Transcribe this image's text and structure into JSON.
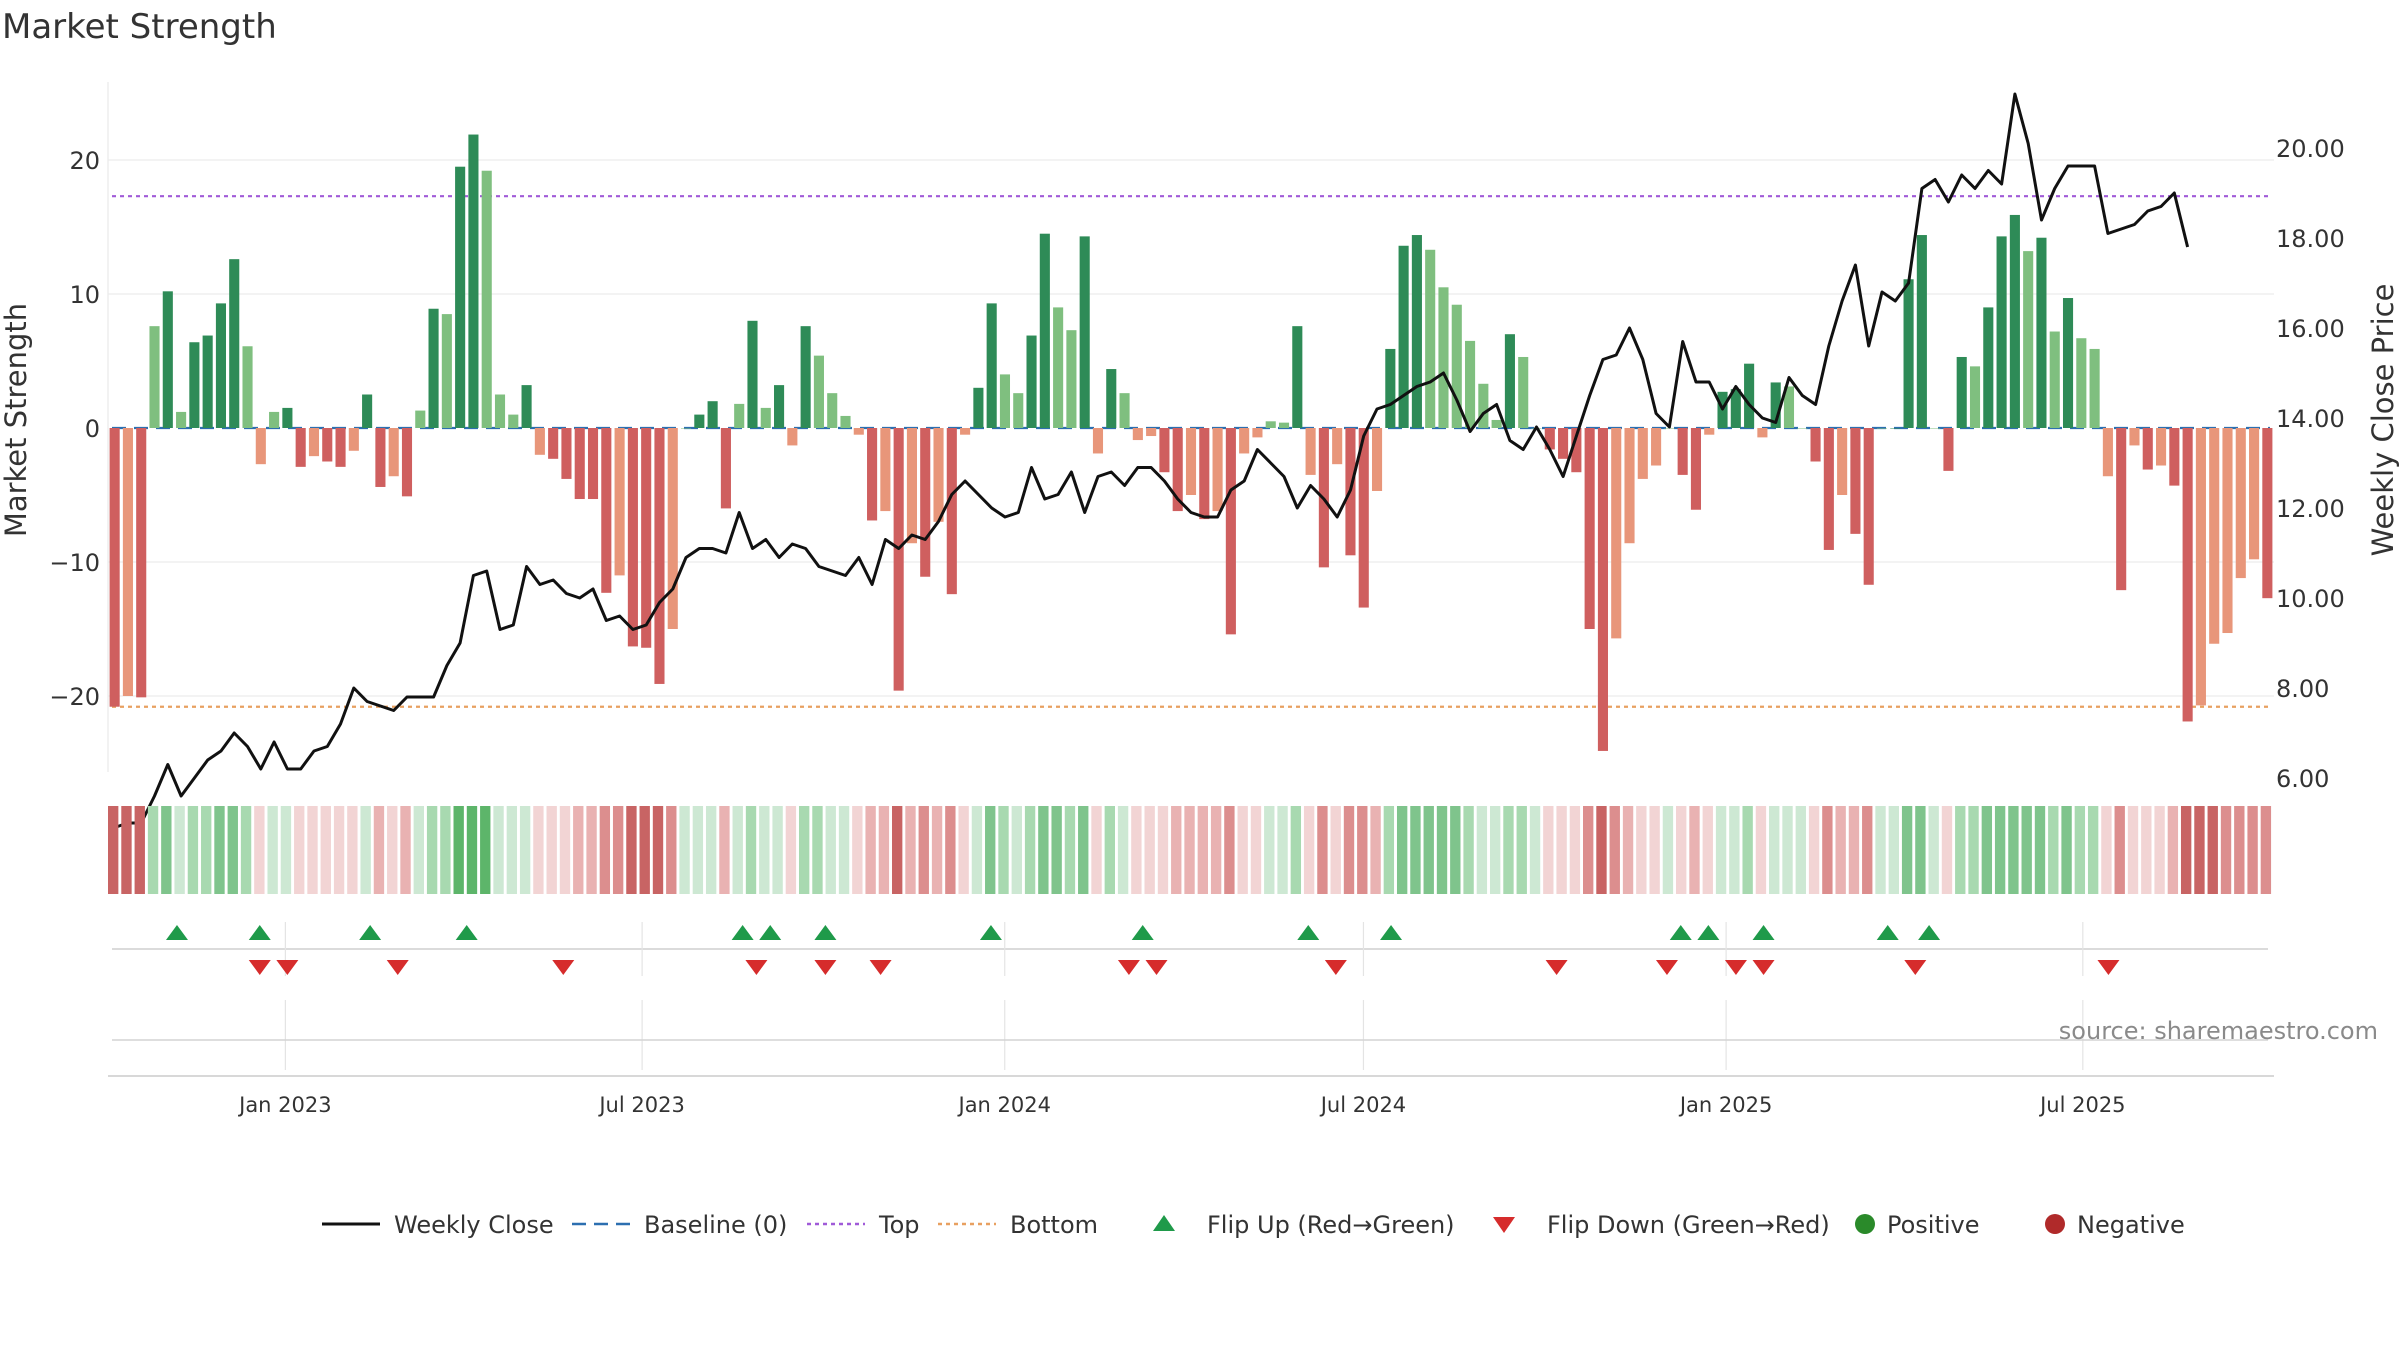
{
  "chart_data": {
    "type": "bar+line",
    "title": "Market Strength",
    "ylabel_left": "Market Strength",
    "ylabel_right": "Weekly Close Price",
    "source": "source: sharemaestro.com",
    "yleft_range": [
      -26,
      26
    ],
    "yleft_ticks": [
      20,
      10,
      0,
      -10,
      -20
    ],
    "yleft_tick_labels": [
      "20",
      "10",
      "0",
      "−10",
      "−20"
    ],
    "yright_range": [
      4.2,
      21.6
    ],
    "yright_ticks": [
      20,
      18,
      16,
      14,
      12,
      10,
      8,
      6
    ],
    "yright_tick_labels": [
      "20.00",
      "18.00",
      "16.00",
      "14.00",
      "12.00",
      "10.00",
      "8.00",
      "6.00"
    ],
    "top_line": 17.3,
    "bottom_line": -20.8,
    "baseline": 0,
    "x_start": "2022-10-03",
    "x_end": "2025-10-06",
    "x_ticks": [
      {
        "date": "2023-01-01",
        "label": "Jan 2023"
      },
      {
        "date": "2023-07-01",
        "label": "Jul 2023"
      },
      {
        "date": "2024-01-01",
        "label": "Jan 2024"
      },
      {
        "date": "2024-07-01",
        "label": "Jul 2024"
      },
      {
        "date": "2025-01-01",
        "label": "Jan 2025"
      },
      {
        "date": "2025-07-01",
        "label": "Jul 2025"
      }
    ],
    "strength": [
      -20.8,
      -20,
      -20.1,
      7.6,
      10.2,
      1.2,
      6.4,
      6.9,
      9.3,
      12.6,
      6.1,
      -2.7,
      1.2,
      1.5,
      -2.9,
      -2.1,
      -2.5,
      -2.9,
      -1.7,
      2.5,
      -4.4,
      -3.6,
      -5.1,
      1.3,
      8.9,
      8.5,
      19.5,
      21.9,
      19.2,
      2.5,
      1,
      3.2,
      -2,
      -2.3,
      -3.8,
      -5.3,
      -5.3,
      -12.3,
      -11,
      -16.3,
      -16.4,
      -19.1,
      -15,
      0,
      1,
      2,
      -6,
      1.8,
      8,
      1.5,
      3.2,
      -1.3,
      7.6,
      5.4,
      2.6,
      0.9,
      -0.5,
      -6.9,
      -6.2,
      -19.6,
      -8.6,
      -11.1,
      -7,
      -12.4,
      -0.5,
      3,
      9.3,
      4,
      2.6,
      6.9,
      14.5,
      9,
      7.3,
      14.3,
      -1.9,
      4.4,
      2.6,
      -0.9,
      -0.6,
      -3.3,
      -6.2,
      -5,
      -6.8,
      -6.2,
      -15.4,
      -1.9,
      -0.7,
      0.5,
      0.4,
      7.6,
      -3.5,
      -10.4,
      -2.7,
      -9.5,
      -13.4,
      -4.7,
      5.9,
      13.6,
      14.4,
      13.3,
      10.5,
      9.2,
      6.5,
      3.3,
      0.6,
      7,
      5.3,
      0,
      -1.6,
      -2.3,
      -3.3,
      -15,
      -24.1,
      -15.7,
      -8.6,
      -3.8,
      -2.8,
      0,
      -3.5,
      -6.1,
      -0.5,
      2.7,
      2.9,
      4.8,
      -0.7,
      3.4,
      3.1,
      0,
      -2.5,
      -9.1,
      -5,
      -7.9,
      -11.7,
      0,
      0,
      11.1,
      14.4,
      0,
      -3.2,
      5.3,
      4.6,
      9,
      14.3,
      15.9,
      13.2,
      14.2,
      7.2,
      9.7,
      6.7,
      5.9,
      -3.6,
      -12.1,
      -1.3,
      -3.1,
      -2.8,
      -4.3,
      -21.9,
      -20.7,
      -16.1,
      -15.3,
      -11.2,
      -9.8,
      -12.7
    ],
    "weekly_close": [
      4.9,
      5,
      5,
      5.6,
      6.3,
      5.6,
      6,
      6.4,
      6.6,
      7,
      6.7,
      6.2,
      6.8,
      6.2,
      6.2,
      6.6,
      6.7,
      7.2,
      8,
      7.7,
      7.6,
      7.5,
      7.8,
      7.8,
      7.8,
      8.5,
      9,
      10.5,
      10.6,
      9.3,
      9.4,
      10.7,
      10.3,
      10.4,
      10.1,
      10,
      10.2,
      9.5,
      9.6,
      9.3,
      9.4,
      9.9,
      10.2,
      10.9,
      11.1,
      11.1,
      11,
      11.9,
      11.1,
      11.3,
      10.9,
      11.2,
      11.1,
      10.7,
      10.6,
      10.5,
      10.9,
      10.3,
      11.3,
      11.1,
      11.4,
      11.3,
      11.7,
      12.3,
      12.6,
      12.3,
      12,
      11.8,
      11.9,
      12.9,
      12.2,
      12.3,
      12.8,
      11.9,
      12.7,
      12.8,
      12.5,
      12.9,
      12.9,
      12.6,
      12.2,
      11.9,
      11.8,
      11.8,
      12.4,
      12.6,
      13.3,
      13,
      12.7,
      12,
      12.5,
      12.2,
      11.8,
      12.4,
      13.6,
      14.2,
      14.3,
      14.5,
      14.7,
      14.8,
      15,
      14.4,
      13.7,
      14.1,
      14.3,
      13.5,
      13.3,
      13.8,
      13.3,
      12.7,
      13.6,
      14.5,
      15.3,
      15.4,
      16,
      15.3,
      14.1,
      13.8,
      15.7,
      14.8,
      14.8,
      14.2,
      14.7,
      14.3,
      14,
      13.9,
      14.9,
      14.5,
      14.3,
      15.6,
      16.6,
      17.4,
      15.6,
      16.8,
      16.6,
      17,
      19.1,
      19.3,
      18.8,
      19.4,
      19.1,
      19.5,
      19.2,
      21.2,
      20.1,
      18.4,
      19.1,
      19.6,
      19.6,
      19.6,
      18.1,
      18.2,
      18.3,
      18.6,
      18.7,
      19,
      17.8
    ],
    "flip_up_dates": [
      "2022-11-07",
      "2022-12-19",
      "2023-02-13",
      "2023-04-03",
      "2023-08-21",
      "2023-09-04",
      "2023-10-02",
      "2023-12-25",
      "2024-03-11",
      "2024-06-03",
      "2024-07-15",
      "2024-12-09",
      "2024-12-23",
      "2025-01-20",
      "2025-03-24",
      "2025-04-14"
    ],
    "flip_down_dates": [
      "2022-12-19",
      "2023-01-02",
      "2023-02-27",
      "2023-05-22",
      "2023-08-28",
      "2023-10-02",
      "2023-10-30",
      "2024-03-04",
      "2024-03-18",
      "2024-06-17",
      "2024-10-07",
      "2024-12-02",
      "2025-01-06",
      "2025-01-20",
      "2025-04-07",
      "2025-07-14"
    ],
    "series": [
      {
        "name": "Weekly Close",
        "color": "#111111",
        "style": "solid"
      },
      {
        "name": "Baseline (0)",
        "color": "#2c6fb0",
        "style": "dashed"
      },
      {
        "name": "Top",
        "color": "#a05ad8",
        "style": "dotted"
      },
      {
        "name": "Bottom",
        "color": "#e8a060",
        "style": "dotted"
      },
      {
        "name": "Flip Up (Red→Green)",
        "color": "#1f9a4a",
        "style": "triangle-up"
      },
      {
        "name": "Flip Down (Green→Red)",
        "color": "#d62c2c",
        "style": "triangle-down"
      },
      {
        "name": "Positive",
        "color": "#2a8a2a",
        "style": "dot"
      },
      {
        "name": "Negative",
        "color": "#b02a2a",
        "style": "dot"
      }
    ],
    "legend_position": "bottom-center",
    "grid": true
  }
}
